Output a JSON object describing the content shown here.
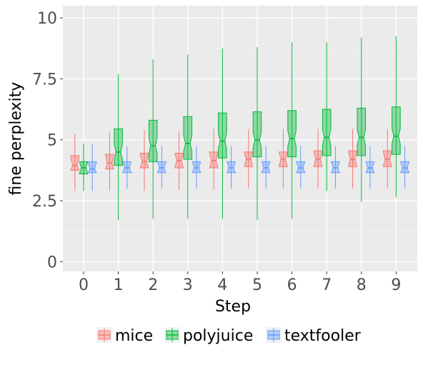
{
  "chart_data": {
    "type": "boxplot",
    "xlabel": "Step",
    "ylabel": "fine perplexity",
    "ylim": [
      -0.4,
      10.5
    ],
    "yticks": [
      0,
      2.5,
      5,
      7.5,
      10
    ],
    "ytick_labels": [
      "0",
      "2.5",
      "5",
      "7.5",
      "10"
    ],
    "categories": [
      "0",
      "1",
      "2",
      "3",
      "4",
      "5",
      "6",
      "7",
      "8",
      "9"
    ],
    "notched": true,
    "grid": true,
    "legend_position": "bottom",
    "series": [
      {
        "name": "mice",
        "color": "#F8766D",
        "boxes": [
          {
            "min": 2.9,
            "q1": 3.75,
            "median": 3.95,
            "q3": 4.35,
            "max": 5.25
          },
          {
            "min": 2.9,
            "q1": 3.8,
            "median": 4.05,
            "q3": 4.4,
            "max": 5.3
          },
          {
            "min": 2.9,
            "q1": 3.85,
            "median": 4.1,
            "q3": 4.45,
            "max": 5.4
          },
          {
            "min": 2.95,
            "q1": 3.85,
            "median": 4.15,
            "q3": 4.45,
            "max": 5.35
          },
          {
            "min": 2.95,
            "q1": 3.85,
            "median": 4.15,
            "q3": 4.5,
            "max": 5.45
          },
          {
            "min": 3.0,
            "q1": 3.9,
            "median": 4.2,
            "q3": 4.5,
            "max": 5.45
          },
          {
            "min": 3.0,
            "q1": 3.9,
            "median": 4.2,
            "q3": 4.5,
            "max": 5.45
          },
          {
            "min": 3.0,
            "q1": 3.9,
            "median": 4.2,
            "q3": 4.55,
            "max": 5.45
          },
          {
            "min": 3.0,
            "q1": 3.9,
            "median": 4.2,
            "q3": 4.55,
            "max": 5.45
          },
          {
            "min": 3.0,
            "q1": 3.9,
            "median": 4.2,
            "q3": 4.55,
            "max": 5.45
          }
        ]
      },
      {
        "name": "polyjuice",
        "color": "#00BA38",
        "boxes": [
          {
            "min": 2.9,
            "q1": 3.6,
            "median": 3.85,
            "q3": 4.1,
            "max": 4.85
          },
          {
            "min": 1.7,
            "q1": 3.95,
            "median": 4.5,
            "q3": 5.45,
            "max": 7.7
          },
          {
            "min": 1.75,
            "q1": 4.1,
            "median": 4.75,
            "q3": 5.8,
            "max": 8.3
          },
          {
            "min": 1.75,
            "q1": 4.2,
            "median": 4.85,
            "q3": 5.95,
            "max": 8.5
          },
          {
            "min": 1.75,
            "q1": 4.25,
            "median": 4.95,
            "q3": 6.1,
            "max": 8.75
          },
          {
            "min": 1.7,
            "q1": 4.3,
            "median": 5.0,
            "q3": 6.15,
            "max": 8.8
          },
          {
            "min": 1.75,
            "q1": 4.3,
            "median": 5.05,
            "q3": 6.2,
            "max": 9.0
          },
          {
            "min": 2.9,
            "q1": 4.35,
            "median": 5.1,
            "q3": 6.25,
            "max": 9.0
          },
          {
            "min": 2.45,
            "q1": 4.35,
            "median": 5.1,
            "q3": 6.3,
            "max": 9.2
          },
          {
            "min": 2.65,
            "q1": 4.4,
            "median": 5.15,
            "q3": 6.35,
            "max": 9.25
          }
        ]
      },
      {
        "name": "textfooler",
        "color": "#619CFF",
        "boxes": [
          {
            "min": 2.9,
            "q1": 3.65,
            "median": 3.8,
            "q3": 4.1,
            "max": 4.85
          },
          {
            "min": 3.0,
            "q1": 3.65,
            "median": 3.85,
            "q3": 4.1,
            "max": 4.75
          },
          {
            "min": 3.0,
            "q1": 3.65,
            "median": 3.85,
            "q3": 4.1,
            "max": 4.75
          },
          {
            "min": 3.0,
            "q1": 3.65,
            "median": 3.85,
            "q3": 4.1,
            "max": 4.75
          },
          {
            "min": 3.0,
            "q1": 3.65,
            "median": 3.85,
            "q3": 4.1,
            "max": 4.75
          },
          {
            "min": 3.0,
            "q1": 3.65,
            "median": 3.85,
            "q3": 4.1,
            "max": 4.75
          },
          {
            "min": 3.0,
            "q1": 3.65,
            "median": 3.85,
            "q3": 4.1,
            "max": 4.75
          },
          {
            "min": 3.0,
            "q1": 3.65,
            "median": 3.85,
            "q3": 4.1,
            "max": 4.75
          },
          {
            "min": 3.0,
            "q1": 3.65,
            "median": 3.85,
            "q3": 4.1,
            "max": 4.75
          },
          {
            "min": 3.0,
            "q1": 3.65,
            "median": 3.85,
            "q3": 4.1,
            "max": 4.75
          }
        ]
      }
    ]
  },
  "legend": {
    "items": [
      {
        "label": "mice",
        "color": "#F8766D"
      },
      {
        "label": "polyjuice",
        "color": "#00BA38"
      },
      {
        "label": "textfooler",
        "color": "#619CFF"
      }
    ]
  }
}
